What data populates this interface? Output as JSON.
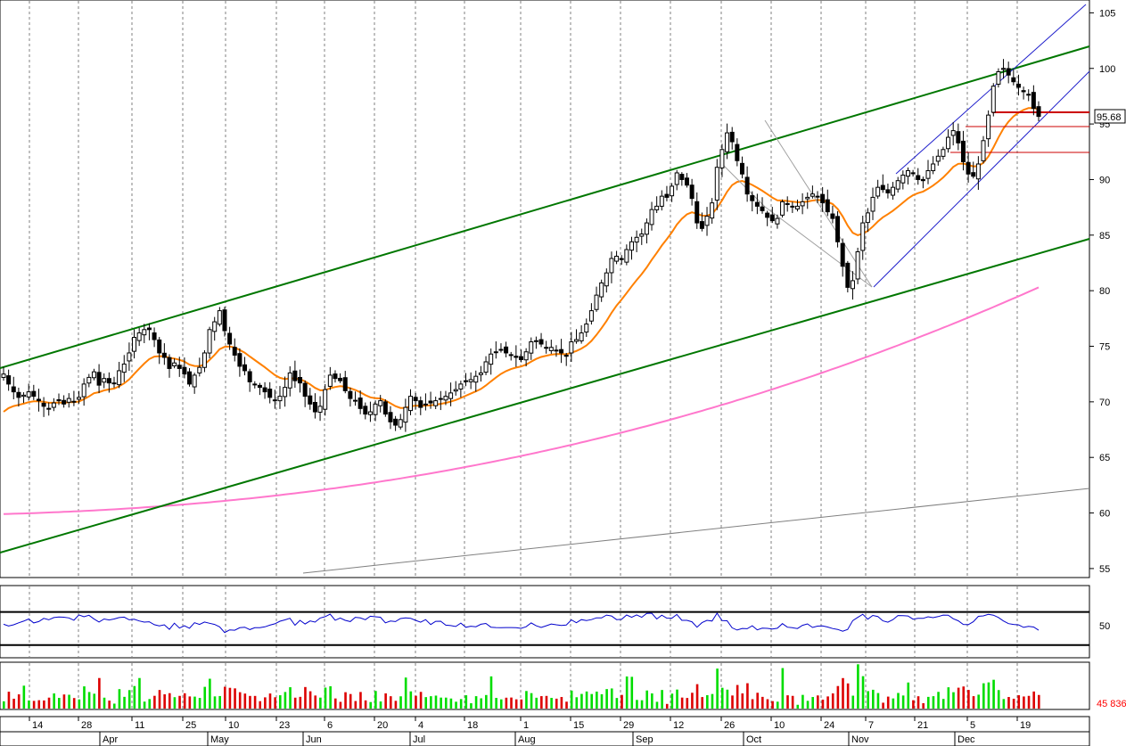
{
  "chart_data": [
    {
      "type": "candlestick",
      "panel": "price",
      "title": "",
      "ylim": [
        54.5,
        106
      ],
      "y_ticks": [
        55,
        60,
        65,
        70,
        75,
        80,
        85,
        90,
        95,
        100,
        105
      ],
      "grid": "vertical dashed",
      "last_price_label": "95.68",
      "series": [
        {
          "name": "",
          "kind": "candles",
          "closes": [
            72.5,
            71.6,
            70.9,
            70.4,
            70.6,
            70.9,
            70.5,
            70.1,
            69.6,
            69.4,
            69.9,
            70.1,
            69.8,
            70.3,
            70.0,
            70.4,
            71.6,
            72.2,
            72.7,
            71.5,
            72.1,
            71.7,
            71.7,
            72.8,
            73.4,
            74.4,
            75.8,
            76.2,
            76.5,
            76.5,
            75.6,
            74.4,
            74.0,
            73.0,
            73.5,
            73.0,
            72.5,
            71.6,
            72.4,
            73.1,
            74.4,
            76.5,
            77.2,
            78.2,
            76.4,
            75.2,
            74.2,
            73.2,
            72.8,
            71.8,
            71.6,
            71.3,
            70.9,
            70.4,
            70.1,
            70.5,
            71.3,
            72.6,
            71.9,
            71.7,
            70.5,
            69.8,
            69.1,
            69.6,
            71.1,
            72.4,
            72.1,
            71.9,
            71.0,
            70.3,
            70.1,
            69.4,
            68.9,
            69.1,
            69.8,
            70.1,
            68.9,
            68.2,
            67.9,
            68.4,
            69.5,
            70.5,
            70.1,
            69.5,
            69.8,
            69.9,
            70.1,
            70.3,
            70.5,
            70.8,
            71.1,
            71.6,
            71.9,
            72.0,
            72.3,
            72.6,
            73.6,
            74.3,
            74.5,
            74.7,
            74.4,
            74.2,
            74.0,
            73.8,
            74.5,
            75.4,
            75.5,
            75.2,
            74.9,
            74.9,
            74.6,
            74.4,
            74.1,
            75.4,
            75.6,
            76.2,
            77.0,
            78.2,
            79.6,
            80.7,
            81.6,
            82.9,
            83.1,
            82.8,
            83.7,
            84.4,
            84.8,
            85.1,
            86.1,
            87.3,
            87.6,
            88.5,
            88.4,
            89.4,
            90.6,
            90.0,
            89.5,
            88.3,
            86.1,
            85.6,
            86.7,
            87.9,
            91.1,
            92.7,
            94.2,
            93.4,
            91.7,
            90.5,
            88.7,
            88.1,
            87.6,
            87.2,
            86.6,
            86.3,
            86.5,
            88.0,
            87.8,
            87.6,
            87.6,
            88.0,
            88.4,
            88.7,
            88.5,
            87.9,
            87.1,
            86.5,
            84.4,
            82.2,
            80.3,
            80.9,
            83.5,
            86.1,
            87.0,
            88.4,
            89.3,
            89.1,
            88.8,
            89.3,
            89.9,
            90.4,
            90.8,
            90.6,
            90.0,
            89.9,
            90.8,
            91.4,
            92.1,
            92.7,
            93.8,
            94.4,
            93.3,
            91.6,
            90.5,
            90.3,
            91.4,
            93.5,
            95.8,
            98.4,
            99.7,
            100.0,
            99.4,
            98.8,
            98.3,
            97.9,
            97.6,
            96.4,
            95.68
          ]
        }
      ]
    },
    {
      "type": "line",
      "panel": "oscillator",
      "ylim": [
        40,
        60
      ],
      "y_ticks": [
        50
      ],
      "reference_levels": [
        56,
        44
      ]
    },
    {
      "type": "bar",
      "panel": "volume",
      "last_volume_label": "45 836"
    }
  ],
  "x_axis": {
    "day_labels": [
      "14",
      "28",
      "11",
      "25",
      "10",
      "23",
      "6",
      "20",
      "4",
      "18",
      "1",
      "15",
      "29",
      "12",
      "26",
      "10",
      "24",
      "7",
      "21",
      "5",
      "19"
    ],
    "month_labels": [
      "Apr",
      "May",
      "Jun",
      "Jul",
      "Aug",
      "Sep",
      "Oct",
      "Nov",
      "Dec"
    ]
  },
  "colors": {
    "channel": "#007700",
    "ma_short": "#ff8000",
    "ma_long": "#ff77cc",
    "rsi": "#0000cc",
    "vol_up": "#00dd00",
    "vol_down": "#dd0000",
    "support_lines": "#cc0000",
    "grid": "#808080"
  }
}
